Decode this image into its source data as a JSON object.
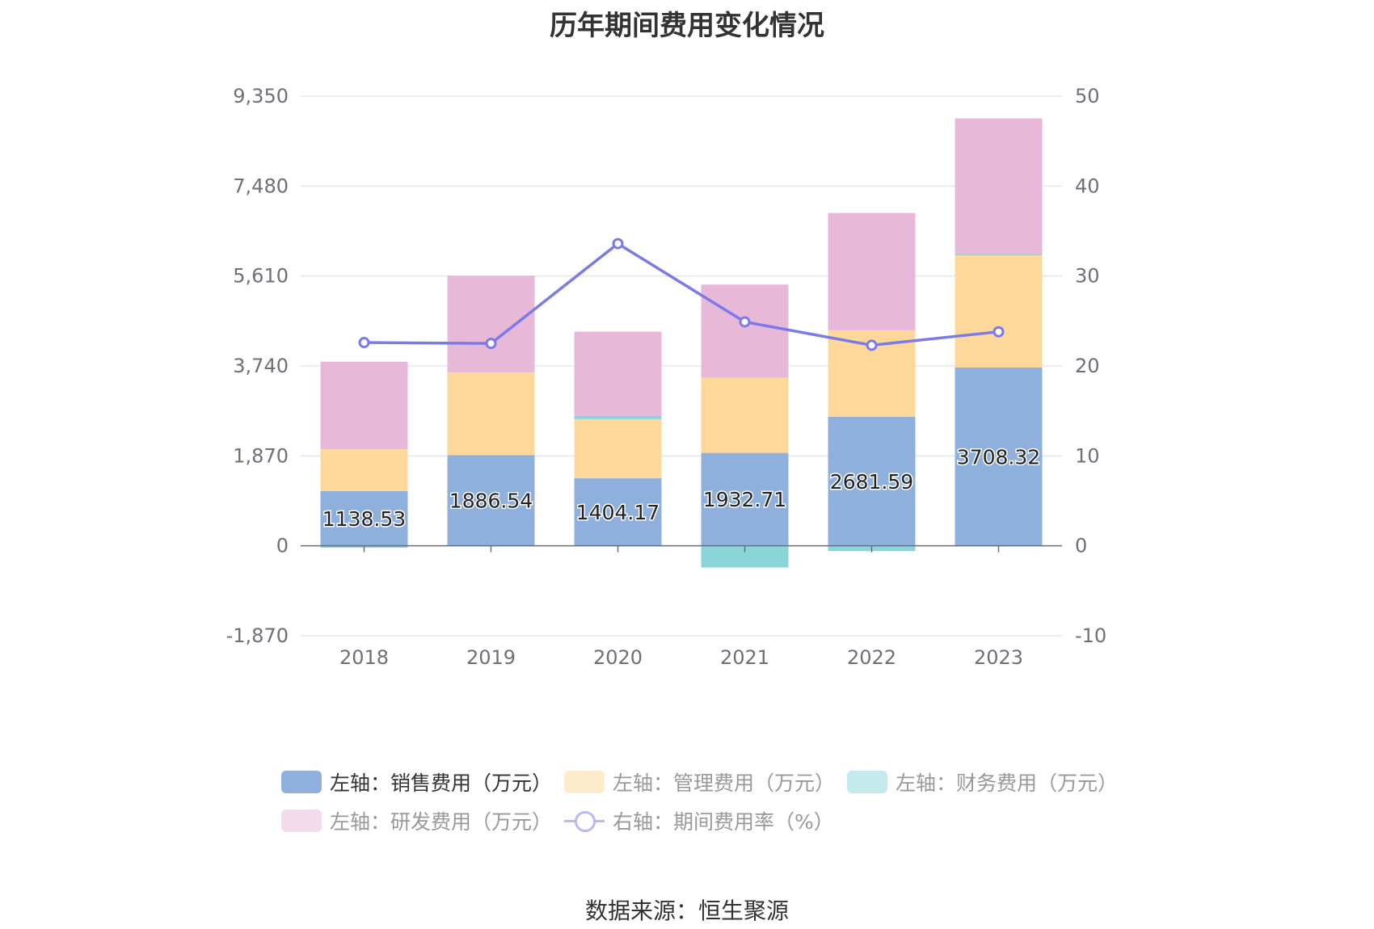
{
  "chart_data": {
    "type": "bar",
    "title": "历年期间费用变化情况",
    "categories": [
      "2018",
      "2019",
      "2020",
      "2021",
      "2022",
      "2023"
    ],
    "left_axis": {
      "ticks": [
        "9,350",
        "7,480",
        "5,610",
        "3,740",
        "1,870",
        "0",
        "-1,870"
      ],
      "min": -1870,
      "max": 9350
    },
    "right_axis": {
      "ticks": [
        "50",
        "40",
        "30",
        "20",
        "10",
        "0",
        "-10"
      ],
      "min": -10,
      "max": 50
    },
    "stacked": true,
    "series": [
      {
        "name": "左轴：销售费用（万元）",
        "color": "#8fb0dc",
        "axis": "left",
        "values": [
          1138.53,
          1886.54,
          1404.17,
          1932.71,
          2681.59,
          3708.32
        ],
        "labels": [
          "1138.53",
          "1886.54",
          "1404.17",
          "1932.71",
          "2681.59",
          "3708.32"
        ]
      },
      {
        "name": "左轴：管理费用（万元）",
        "color": "#fdd898",
        "axis": "left",
        "values": [
          870,
          1720,
          1230,
          1560,
          1800,
          2330
        ]
      },
      {
        "name": "左轴：财务费用（万元）",
        "color": "#8ad5d9",
        "axis": "left",
        "values": [
          -40,
          -10,
          70,
          -450,
          -110,
          30
        ]
      },
      {
        "name": "左轴：研发费用（万元）",
        "color": "#e8b8d9",
        "axis": "left",
        "values": [
          1820,
          2010,
          1750,
          1940,
          2440,
          2820
        ]
      },
      {
        "name": "右轴：期间费用率（%）",
        "color": "#7a7be8",
        "type": "line",
        "axis": "right",
        "values": [
          22.6,
          22.5,
          33.6,
          24.9,
          22.3,
          23.8
        ]
      }
    ],
    "legend_position": "bottom",
    "grid": true
  },
  "source": "数据来源：恒生聚源"
}
